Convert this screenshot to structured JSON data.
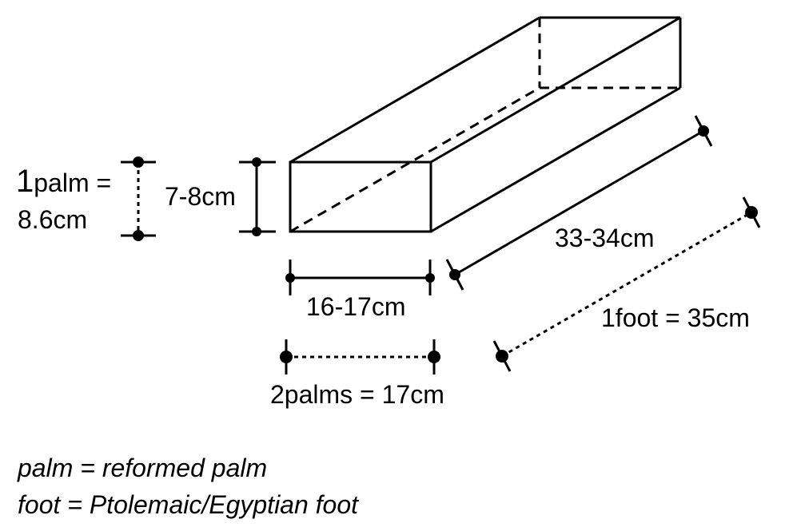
{
  "labels": {
    "palm_one": "1",
    "palm_unit": "palm =",
    "palm_value": "8.6cm",
    "height": "7-8cm",
    "width": "16-17cm",
    "length": "33-34cm",
    "foot": "1foot = 35cm",
    "two_palms": "2palms = 17cm"
  },
  "notes": {
    "palm": "palm = reformed palm",
    "foot": "foot = Ptolemaic/Egyptian foot"
  }
}
